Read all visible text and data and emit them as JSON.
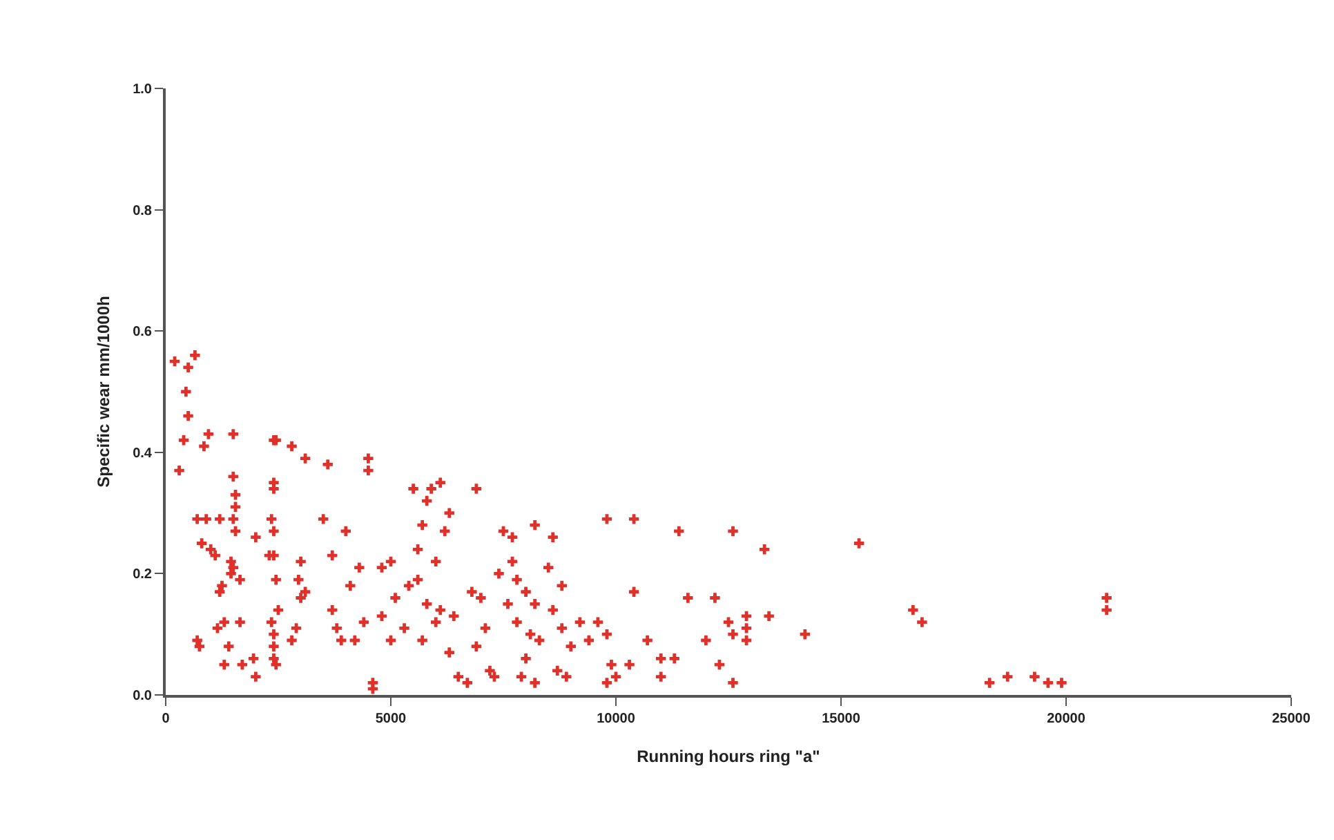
{
  "chart_data": {
    "type": "scatter",
    "xlabel": "Running hours ring \"a\"",
    "ylabel": "Specific wear mm/1000h",
    "xlim": [
      0,
      25000
    ],
    "xticks": [
      0,
      5000,
      10000,
      15000,
      20000,
      25000
    ],
    "ylim": [
      0,
      1
    ],
    "yticks": [
      {
        "value": 0,
        "label": "0.0"
      },
      {
        "value": 0.2,
        "label": "0.2"
      },
      {
        "value": 0.4,
        "label": "0.4"
      },
      {
        "value": 0.6,
        "label": "0.6"
      },
      {
        "value": 0.8,
        "label": "0.8"
      },
      {
        "value": 1,
        "label": "1.0"
      }
    ],
    "marker": "cross",
    "series": [
      {
        "color": "#e0302a",
        "x": [
          200,
          500,
          650,
          450,
          500,
          400,
          300,
          700,
          800,
          850,
          950,
          700,
          750,
          900,
          1000,
          1200,
          1100,
          1250,
          1200,
          1150,
          1300,
          1300,
          1500,
          1500,
          1550,
          1550,
          1500,
          1550,
          1450,
          1500,
          1450,
          1650,
          1650,
          1400,
          1700,
          2000,
          2000,
          1950,
          2400,
          2450,
          2400,
          2400,
          2350,
          2400,
          2300,
          2400,
          2450,
          2500,
          2400,
          2400,
          2400,
          2450,
          2350,
          2800,
          3100,
          3000,
          2950,
          3100,
          3000,
          2900,
          2800,
          3500,
          3700,
          3700,
          3800,
          3900,
          3600,
          4000,
          4300,
          4100,
          4500,
          4500,
          4600,
          4600,
          4400,
          4200,
          4800,
          5000,
          5100,
          4800,
          5000,
          5300,
          5500,
          5900,
          5800,
          6100,
          6300,
          5700,
          6200,
          5600,
          6000,
          5400,
          5600,
          5800,
          6100,
          6400,
          6000,
          5700,
          6300,
          6500,
          6700,
          6900,
          6800,
          7000,
          7100,
          6900,
          7200,
          7300,
          7500,
          7700,
          7400,
          7800,
          7600,
          8000,
          8200,
          7800,
          8100,
          8300,
          8000,
          7900,
          8200,
          7700,
          8200,
          8600,
          8500,
          8800,
          8600,
          8800,
          9000,
          8700,
          8900,
          9200,
          9400,
          9600,
          9800,
          9800,
          9900,
          10000,
          9800,
          10400,
          10400,
          10700,
          10300,
          11000,
          11000,
          11400,
          11300,
          11600,
          12000,
          12200,
          12300,
          12600,
          12500,
          12600,
          12900,
          12900,
          12900,
          12600,
          13300,
          13400,
          14200,
          15400,
          16600,
          16800,
          18300,
          18700,
          19300,
          19600,
          19900,
          20900,
          20900
        ],
        "values": [
          0.55,
          0.54,
          0.56,
          0.5,
          0.46,
          0.42,
          0.37,
          0.29,
          0.25,
          0.41,
          0.43,
          0.09,
          0.08,
          0.29,
          0.24,
          0.29,
          0.23,
          0.18,
          0.17,
          0.11,
          0.12,
          0.05,
          0.43,
          0.36,
          0.33,
          0.31,
          0.29,
          0.27,
          0.22,
          0.21,
          0.2,
          0.19,
          0.12,
          0.08,
          0.05,
          0.26,
          0.03,
          0.06,
          0.42,
          0.42,
          0.35,
          0.34,
          0.29,
          0.27,
          0.23,
          0.23,
          0.19,
          0.14,
          0.1,
          0.08,
          0.06,
          0.05,
          0.12,
          0.41,
          0.39,
          0.22,
          0.19,
          0.17,
          0.16,
          0.11,
          0.09,
          0.29,
          0.23,
          0.14,
          0.11,
          0.09,
          0.38,
          0.27,
          0.21,
          0.18,
          0.39,
          0.37,
          0.02,
          0.01,
          0.12,
          0.09,
          0.21,
          0.22,
          0.16,
          0.13,
          0.09,
          0.11,
          0.34,
          0.34,
          0.32,
          0.35,
          0.3,
          0.28,
          0.27,
          0.24,
          0.22,
          0.18,
          0.19,
          0.15,
          0.14,
          0.13,
          0.12,
          0.09,
          0.07,
          0.03,
          0.02,
          0.34,
          0.17,
          0.16,
          0.11,
          0.08,
          0.04,
          0.03,
          0.27,
          0.26,
          0.2,
          0.19,
          0.15,
          0.17,
          0.15,
          0.12,
          0.1,
          0.09,
          0.06,
          0.03,
          0.02,
          0.22,
          0.28,
          0.26,
          0.21,
          0.18,
          0.14,
          0.11,
          0.08,
          0.04,
          0.03,
          0.12,
          0.09,
          0.12,
          0.29,
          0.1,
          0.05,
          0.03,
          0.02,
          0.29,
          0.17,
          0.09,
          0.05,
          0.03,
          0.06,
          0.27,
          0.06,
          0.16,
          0.09,
          0.16,
          0.05,
          0.27,
          0.12,
          0.1,
          0.13,
          0.11,
          0.09,
          0.02,
          0.24,
          0.13,
          0.1,
          0.25,
          0.14,
          0.12,
          0.02,
          0.03,
          0.03,
          0.02,
          0.02,
          0.16,
          0.14
        ]
      }
    ]
  }
}
